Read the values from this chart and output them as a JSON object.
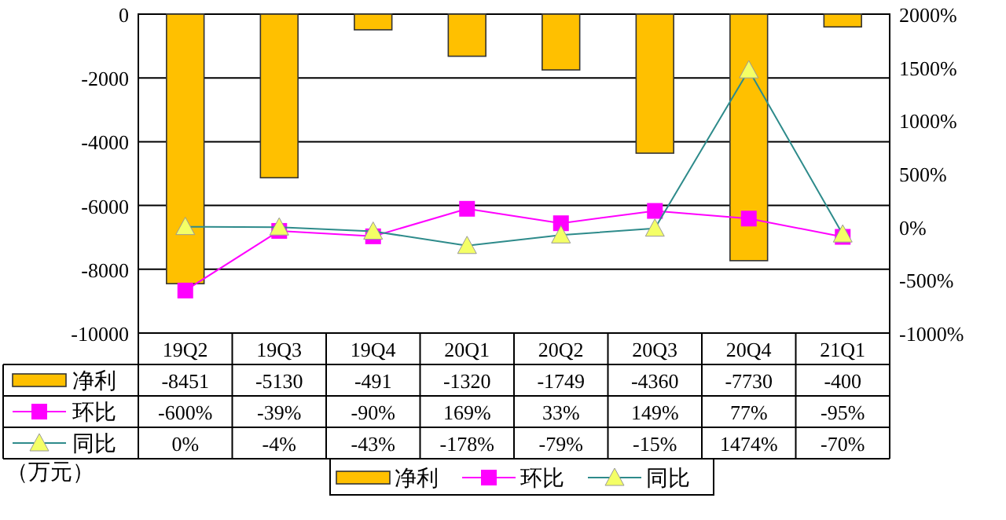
{
  "chart_data": {
    "type": "bar",
    "categories": [
      "19Q2",
      "19Q3",
      "19Q4",
      "20Q1",
      "20Q2",
      "20Q3",
      "20Q4",
      "21Q1"
    ],
    "ylim": [
      -10000,
      0
    ],
    "yticks": [
      -10000,
      -8000,
      -6000,
      -4000,
      -2000,
      0
    ],
    "y2lim": [
      -1000,
      2000
    ],
    "y2ticks": [
      {
        "value": -1000,
        "label": "-1000%"
      },
      {
        "value": -500,
        "label": "-500%"
      },
      {
        "value": 0,
        "label": "0%"
      },
      {
        "value": 500,
        "label": "500%"
      },
      {
        "value": 1000,
        "label": "1000%"
      },
      {
        "value": 1500,
        "label": "1500%"
      },
      {
        "value": 2000,
        "label": "2000%"
      }
    ],
    "grid": "y",
    "legend": "bottom",
    "annotations": [
      "（万元）"
    ],
    "series": [
      {
        "name": "净利",
        "color": "#ffc000",
        "values": [
          -8451,
          -5130,
          -491,
          -1320,
          -1749,
          -4360,
          -7730,
          -400
        ],
        "value_labels": [
          "-8451",
          "-5130",
          "-491",
          "-1320",
          "-1749",
          "-4360",
          "-7730",
          "-400"
        ]
      },
      {
        "name": "环比",
        "type": "line",
        "axis": "y2",
        "color": "#ff00ff",
        "marker": "square",
        "values": [
          -600,
          -39,
          -90,
          169,
          33,
          149,
          77,
          -95
        ],
        "value_labels": [
          "-600%",
          "-39%",
          "-90%",
          "169%",
          "33%",
          "149%",
          "77%",
          "-95%"
        ]
      },
      {
        "name": "同比",
        "type": "line",
        "axis": "y2",
        "color": "#2e8b8b",
        "marker": "triangle",
        "values": [
          0,
          -4,
          -43,
          -178,
          -79,
          -15,
          1474,
          -70
        ],
        "value_labels": [
          "0%",
          "-4%",
          "-43%",
          "-178%",
          "-79%",
          "-15%",
          "1474%",
          "-70%"
        ]
      }
    ]
  }
}
